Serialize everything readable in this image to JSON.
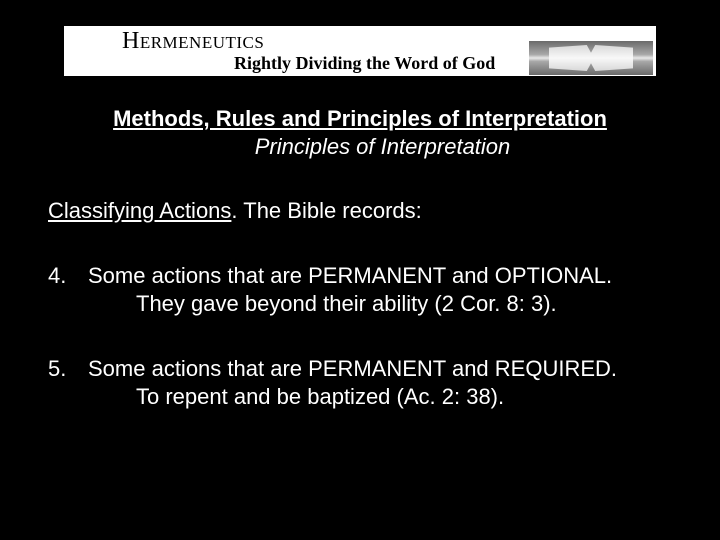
{
  "header": {
    "title": "Hermeneutics",
    "subtitle": "Rightly Dividing the Word of God"
  },
  "content": {
    "heading": "Methods, Rules and Principles of Interpretation",
    "subheading": "Principles of Interpretation",
    "lead_underlined": "Classifying Actions",
    "lead_rest": ".  The Bible records:",
    "items": [
      {
        "num": "4.",
        "line1": "Some actions that are PERMANENT and OPTIONAL.",
        "line2": "They gave beyond their ability (2 Cor. 8: 3)."
      },
      {
        "num": "5.",
        "line1": "Some actions that are PERMANENT and REQUIRED.",
        "line2": "To repent and be baptized (Ac. 2: 38)."
      }
    ]
  },
  "style": {
    "bg": "#000000",
    "fg": "#ffffff",
    "header_bg": "#ffffff",
    "heading_fontsize": 22,
    "body_fontsize": 22
  }
}
